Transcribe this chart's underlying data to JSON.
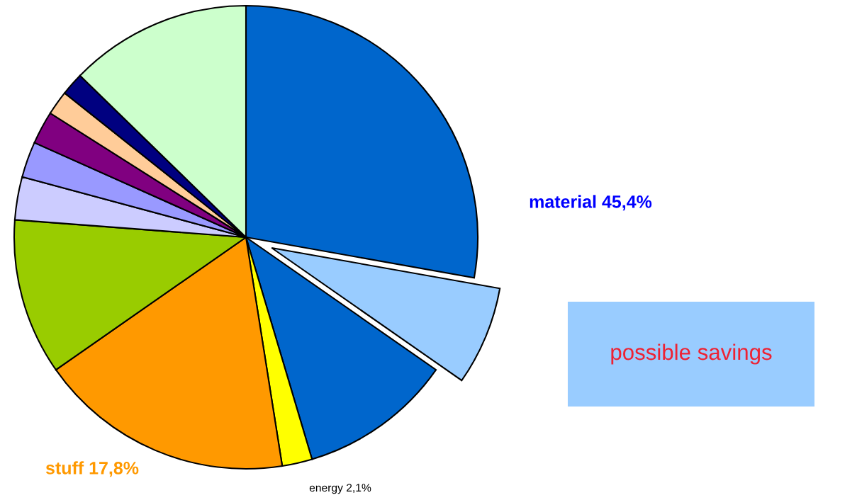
{
  "chart_data": {
    "type": "pie",
    "annotations": [
      "possible savings"
    ],
    "categories": [
      "material 45,4%",
      null,
      null,
      "energy 2,1%",
      "stuff 17,8%",
      null,
      null,
      null,
      null,
      null,
      null,
      null
    ],
    "values": [
      27.8,
      6.9,
      10.7,
      2.1,
      17.8,
      10.9,
      3.0,
      2.5,
      2.3,
      1.7,
      1.6,
      12.7
    ],
    "colors": [
      "#0066cc",
      "#99ccff",
      "#0066cc",
      "#ffff00",
      "#ff9900",
      "#99cc00",
      "#ccccff",
      "#9999ff",
      "#800080",
      "#ffcc99",
      "#000080",
      "#ccffcc"
    ]
  }
}
